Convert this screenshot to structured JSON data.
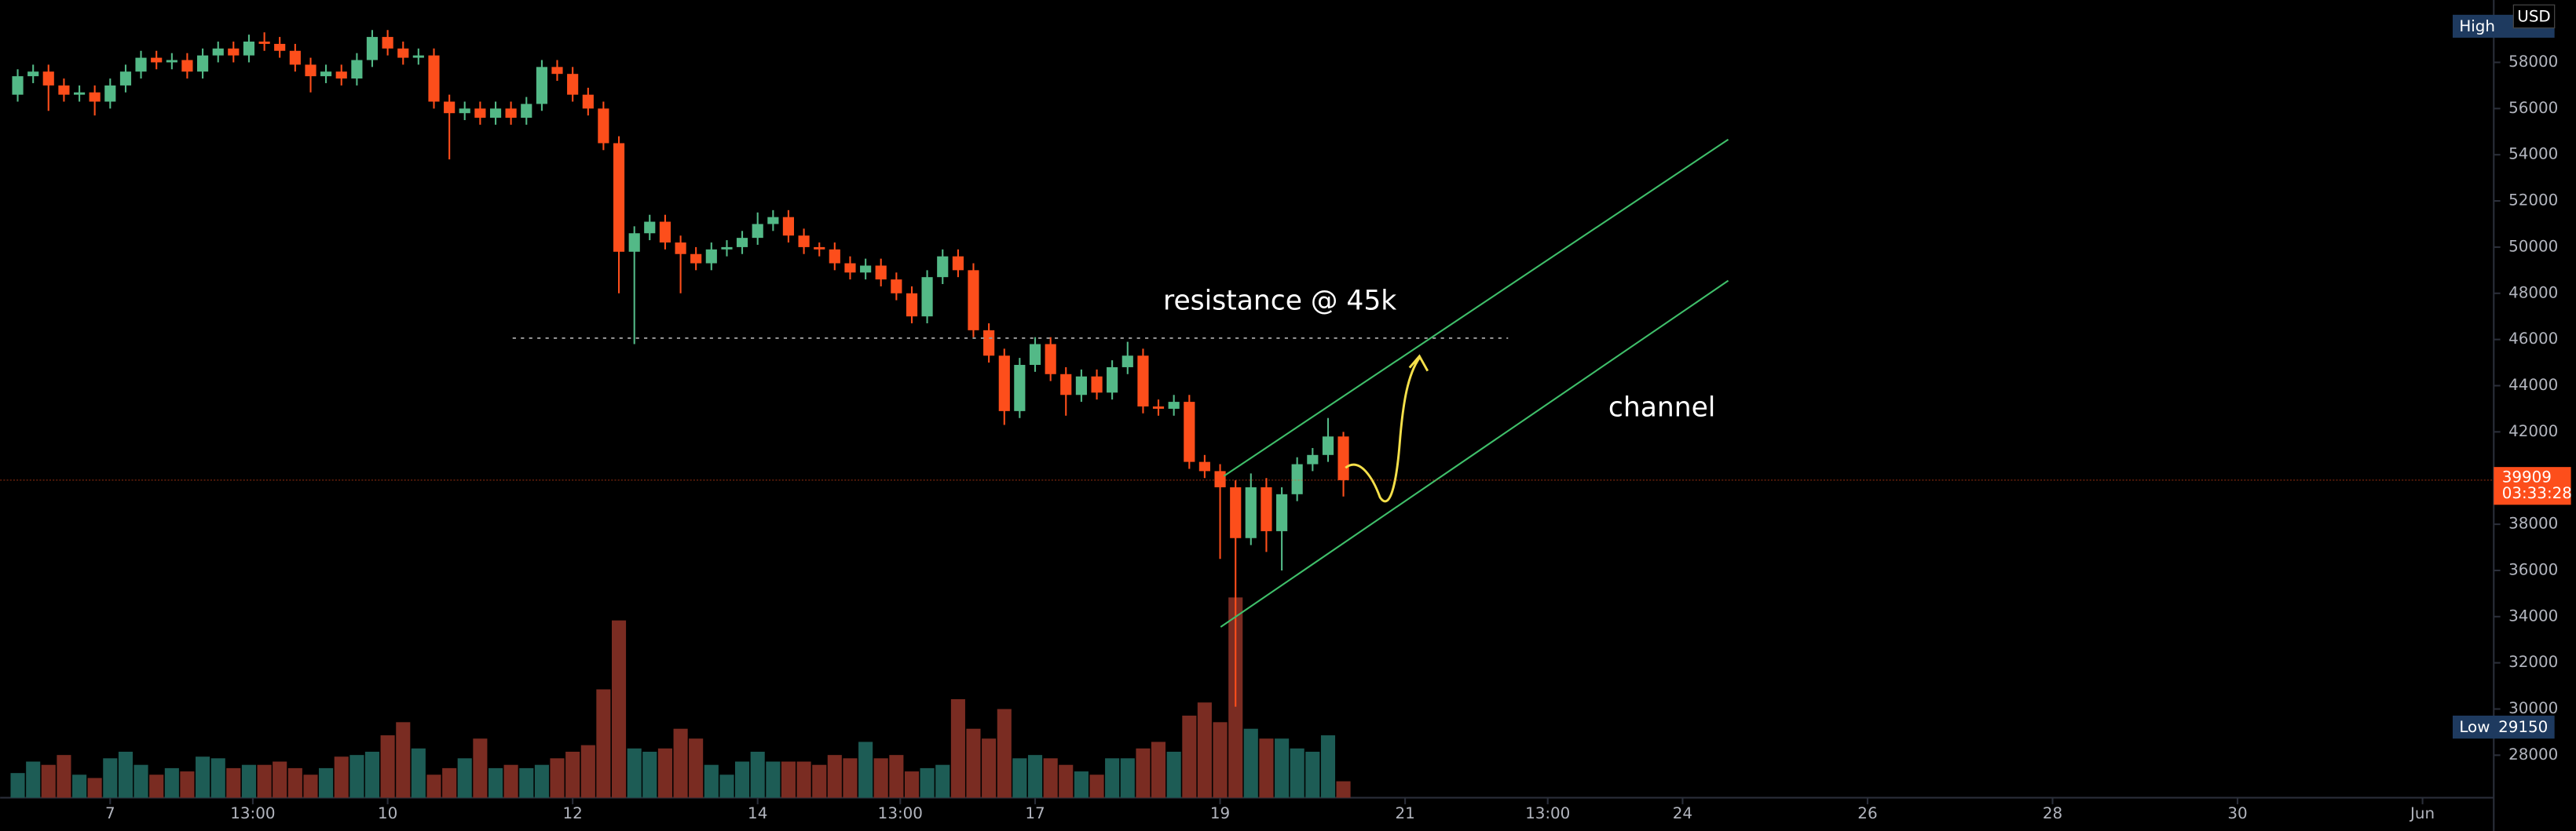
{
  "chart_data": {
    "type": "candlestick",
    "x": [
      6,
      6.167,
      6.333,
      6.5,
      6.667,
      6.833,
      7,
      7.167,
      7.333,
      7.5,
      7.667,
      7.833,
      8,
      8.167,
      8.333,
      8.5,
      8.667,
      8.833,
      9,
      9.167,
      9.333,
      9.5,
      9.667,
      9.833,
      10,
      10.167,
      10.333,
      10.5,
      10.667,
      10.833,
      11,
      11.167,
      11.333,
      11.5,
      11.667,
      11.833,
      12,
      12.167,
      12.333,
      12.5,
      12.667,
      12.833,
      13,
      13.167,
      13.333,
      13.5,
      13.667,
      13.833,
      14,
      14.167,
      14.333,
      14.5,
      14.667,
      14.833,
      15,
      15.167,
      15.333,
      15.5,
      15.667,
      15.833,
      16,
      16.167,
      16.333,
      16.5,
      16.667,
      16.833,
      17,
      17.167,
      17.333,
      17.5,
      17.667,
      17.833,
      18,
      18.167,
      18.333,
      18.5,
      18.667,
      18.833,
      19,
      19.167,
      19.333,
      19.5,
      19.667,
      19.833,
      20,
      20.167,
      20.333
    ],
    "open": [
      56600,
      57400,
      57600,
      57000,
      56600,
      56700,
      56300,
      57000,
      57600,
      58200,
      58000,
      58100,
      57600,
      58300,
      58600,
      58300,
      58900,
      58800,
      58500,
      57900,
      57400,
      57600,
      57300,
      58100,
      59100,
      58600,
      58200,
      58300,
      56300,
      55800,
      56000,
      55600,
      56000,
      55600,
      56200,
      57800,
      57500,
      56600,
      56000,
      54500,
      49800,
      50600,
      51100,
      50200,
      49700,
      49300,
      49900,
      50000,
      50400,
      51000,
      51300,
      50500,
      50000,
      49900,
      49300,
      48900,
      49200,
      48600,
      48000,
      47000,
      48700,
      49600,
      49000,
      46400,
      45300,
      42900,
      44900,
      45800,
      44500,
      43600,
      44400,
      43700,
      44800,
      45300,
      43100,
      43000,
      43300,
      40700,
      40300,
      39600,
      37400,
      39600,
      37700,
      39300,
      40600,
      41000,
      41800
    ],
    "high": [
      57700,
      57900,
      57900,
      57300,
      57000,
      57000,
      57300,
      57900,
      58500,
      58500,
      58400,
      58400,
      58600,
      58900,
      58900,
      59200,
      59300,
      59100,
      58800,
      58200,
      57900,
      57900,
      58400,
      59400,
      59400,
      58900,
      58600,
      58600,
      56600,
      56300,
      56300,
      56300,
      56300,
      56500,
      58100,
      58100,
      57800,
      56900,
      56300,
      54800,
      50900,
      51400,
      51400,
      50500,
      50000,
      50200,
      50300,
      50700,
      51500,
      51600,
      51600,
      50800,
      50200,
      50200,
      49600,
      49500,
      49500,
      48900,
      48300,
      49000,
      49900,
      49900,
      49300,
      46700,
      45600,
      45200,
      46100,
      46100,
      44800,
      44700,
      44700,
      45100,
      45900,
      45600,
      43400,
      43600,
      43600,
      41000,
      40600,
      39900,
      40200,
      40000,
      39600,
      40900,
      41300,
      42600,
      42000
    ],
    "low": [
      56300,
      57100,
      55900,
      56300,
      56300,
      55700,
      56000,
      56700,
      57300,
      57700,
      57700,
      57300,
      57300,
      58000,
      58000,
      58000,
      58500,
      58200,
      57600,
      56700,
      57100,
      57000,
      57000,
      57800,
      58300,
      57900,
      57900,
      56000,
      53800,
      55500,
      55300,
      55300,
      55300,
      55300,
      55900,
      57200,
      56300,
      55700,
      54200,
      48000,
      45800,
      50300,
      49900,
      48000,
      49000,
      49000,
      49600,
      49700,
      50100,
      50700,
      50200,
      49700,
      49600,
      49000,
      48600,
      48600,
      48300,
      47700,
      46700,
      46700,
      48400,
      48700,
      46100,
      45000,
      42300,
      42600,
      44600,
      44200,
      42700,
      43300,
      43400,
      43400,
      44500,
      42800,
      42700,
      42700,
      40400,
      40000,
      36500,
      30100,
      37100,
      36800,
      36000,
      39000,
      40300,
      40700,
      39200
    ],
    "close": [
      57400,
      57600,
      57000,
      56600,
      56700,
      56300,
      57000,
      57600,
      58200,
      58000,
      58100,
      57600,
      58300,
      58600,
      58300,
      58900,
      58800,
      58500,
      57900,
      57400,
      57600,
      57300,
      58100,
      59100,
      58600,
      58200,
      58300,
      56300,
      55800,
      56000,
      55600,
      56000,
      55600,
      56200,
      57800,
      57500,
      56600,
      56000,
      54500,
      49800,
      50600,
      51100,
      50200,
      49700,
      49300,
      49900,
      50000,
      50400,
      51000,
      51300,
      50500,
      50000,
      49900,
      49300,
      48900,
      49200,
      48600,
      48000,
      47000,
      48700,
      49600,
      49000,
      46400,
      45300,
      42900,
      44900,
      45800,
      44500,
      43600,
      44400,
      43700,
      44800,
      45300,
      43100,
      43000,
      43300,
      40700,
      40300,
      39600,
      37400,
      39600,
      37700,
      39300,
      40600,
      41000,
      41800,
      39909
    ],
    "volume": [
      15,
      22,
      20,
      26,
      14,
      12,
      24,
      28,
      20,
      14,
      18,
      16,
      25,
      24,
      18,
      20,
      20,
      22,
      18,
      14,
      18,
      25,
      26,
      28,
      38,
      46,
      30,
      14,
      18,
      24,
      36,
      18,
      20,
      18,
      20,
      24,
      28,
      32,
      66,
      108,
      30,
      28,
      30,
      42,
      36,
      20,
      14,
      22,
      28,
      22,
      22,
      22,
      20,
      26,
      24,
      34,
      24,
      26,
      16,
      18,
      20,
      60,
      42,
      36,
      54,
      24,
      26,
      24,
      20,
      16,
      14,
      24,
      24,
      30,
      34,
      28,
      50,
      58,
      46,
      122,
      42,
      36,
      36,
      30,
      28,
      38,
      10
    ],
    "up_color": "#53b987",
    "down_color": "#fd4e1b",
    "volume_up_color": "#1d5c55",
    "volume_down_color": "#7a2c22",
    "xlim": [
      5.81,
      32.77
    ],
    "ylim": [
      26160,
      60700
    ],
    "xticks": [
      7,
      {
        "value": 8.542,
        "label": "13:00"
      },
      10,
      12,
      14,
      {
        "value": 15.542,
        "label": "13:00"
      },
      17,
      19,
      21,
      {
        "value": 22.542,
        "label": "13:00"
      },
      24,
      26,
      28,
      30,
      {
        "value": 32,
        "label": "Jun"
      }
    ],
    "yticks": [
      28000,
      30000,
      32000,
      34000,
      36000,
      38000,
      40000,
      42000,
      44000,
      46000,
      48000,
      50000,
      52000,
      54000,
      56000,
      58000
    ],
    "annotations": [
      "resistance @ 45k",
      "channel"
    ],
    "countdown": "03:33:28",
    "currency": "USD",
    "high_label": "High",
    "low_label": "Low",
    "low_value": 29150
  }
}
